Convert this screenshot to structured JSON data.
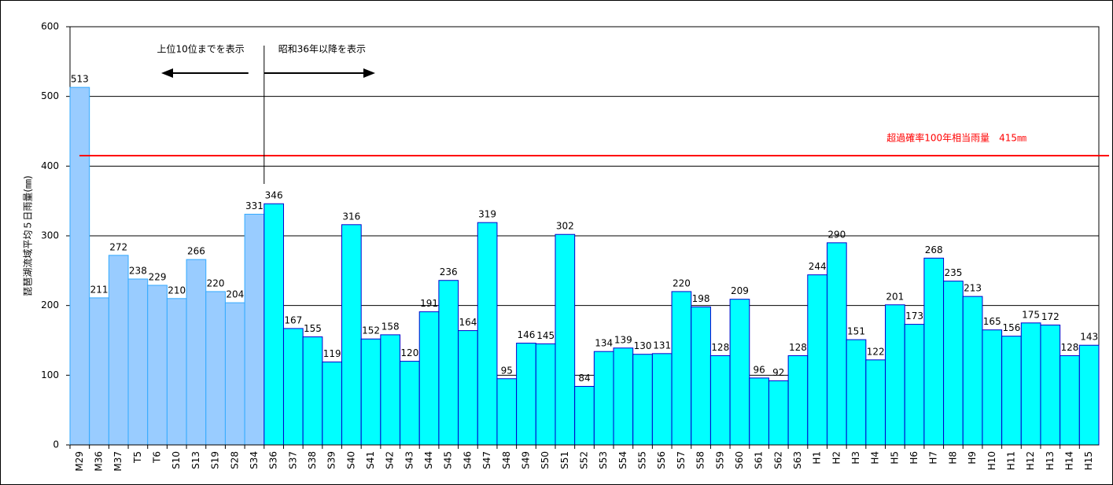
{
  "chart_data": {
    "type": "bar",
    "ylabel": "琵琶湖流域平均５日雨量(㎜)",
    "categories": [
      "M29",
      "M36",
      "M37",
      "T5",
      "T6",
      "S10",
      "S13",
      "S19",
      "S28",
      "S34",
      "S36",
      "S37",
      "S38",
      "S39",
      "S40",
      "S41",
      "S42",
      "S43",
      "S44",
      "S45",
      "S46",
      "S47",
      "S48",
      "S49",
      "S50",
      "S51",
      "S52",
      "S53",
      "S54",
      "S55",
      "S56",
      "S57",
      "S58",
      "S59",
      "S60",
      "S61",
      "S62",
      "S63",
      "H1",
      "H2",
      "H3",
      "H4",
      "H5",
      "H6",
      "H7",
      "H8",
      "H9",
      "H10",
      "H11",
      "H12",
      "H13",
      "H14",
      "H15"
    ],
    "values": [
      513,
      211,
      272,
      238,
      229,
      210,
      266,
      220,
      204,
      331,
      346,
      167,
      155,
      119,
      316,
      152,
      158,
      120,
      191,
      236,
      164,
      319,
      95,
      146,
      145,
      302,
      84,
      134,
      139,
      130,
      131,
      220,
      198,
      128,
      209,
      96,
      92,
      128,
      244,
      290,
      151,
      122,
      201,
      173,
      268,
      235,
      213,
      165,
      156,
      175,
      172,
      128,
      143
    ],
    "colors": [
      "#99ccff",
      "#99ccff",
      "#99ccff",
      "#99ccff",
      "#99ccff",
      "#99ccff",
      "#99ccff",
      "#99ccff",
      "#99ccff",
      "#99ccff",
      "#00ffff",
      "#00ffff",
      "#00ffff",
      "#00ffff",
      "#00ffff",
      "#00ffff",
      "#00ffff",
      "#00ffff",
      "#00ffff",
      "#00ffff",
      "#00ffff",
      "#00ffff",
      "#00ffff",
      "#00ffff",
      "#00ffff",
      "#00ffff",
      "#00ffff",
      "#00ffff",
      "#00ffff",
      "#00ffff",
      "#00ffff",
      "#00ffff",
      "#00ffff",
      "#00ffff",
      "#00ffff",
      "#00ffff",
      "#00ffff",
      "#00ffff",
      "#00ffff",
      "#00ffff",
      "#00ffff",
      "#00ffff",
      "#00ffff",
      "#00ffff",
      "#00ffff",
      "#00ffff",
      "#00ffff",
      "#00ffff",
      "#00ffff",
      "#00ffff",
      "#00ffff",
      "#00ffff",
      "#00ffff"
    ],
    "edgecolor_groups": {
      "light": "#33aaff",
      "cyan": "#0000cc"
    },
    "ylim": [
      0,
      600
    ],
    "yticks": [
      0,
      100,
      200,
      300,
      400,
      500,
      600
    ],
    "grid": true,
    "reference_line": {
      "value": 415,
      "label": "超過確率100年相当雨量　415㎜",
      "color": "#ff0000"
    },
    "annotations": [
      "上位10位までを表示",
      "昭和36年以降を表示"
    ]
  }
}
